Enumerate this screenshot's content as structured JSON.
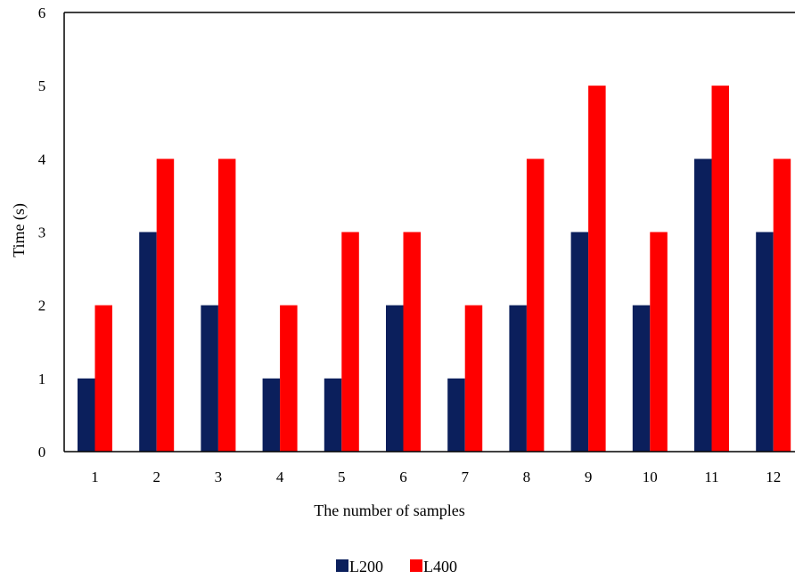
{
  "chart_data": {
    "type": "bar",
    "title": "",
    "xlabel": "The number of samples",
    "ylabel": "Time (s)",
    "ylim": [
      0,
      6
    ],
    "yticks": [
      0,
      1,
      2,
      3,
      4,
      5,
      6
    ],
    "categories": [
      "1",
      "2",
      "3",
      "4",
      "5",
      "6",
      "7",
      "8",
      "9",
      "10",
      "11",
      "12"
    ],
    "series": [
      {
        "name": "L200",
        "color": "#0b1f5c",
        "values": [
          1,
          3,
          2,
          1,
          1,
          2,
          1,
          2,
          3,
          2,
          4,
          3
        ]
      },
      {
        "name": "L400",
        "color": "#ff0000",
        "values": [
          2,
          4,
          4,
          2,
          3,
          3,
          2,
          4,
          5,
          3,
          5,
          4
        ]
      }
    ],
    "grid": false,
    "legend": "bottom-center"
  }
}
